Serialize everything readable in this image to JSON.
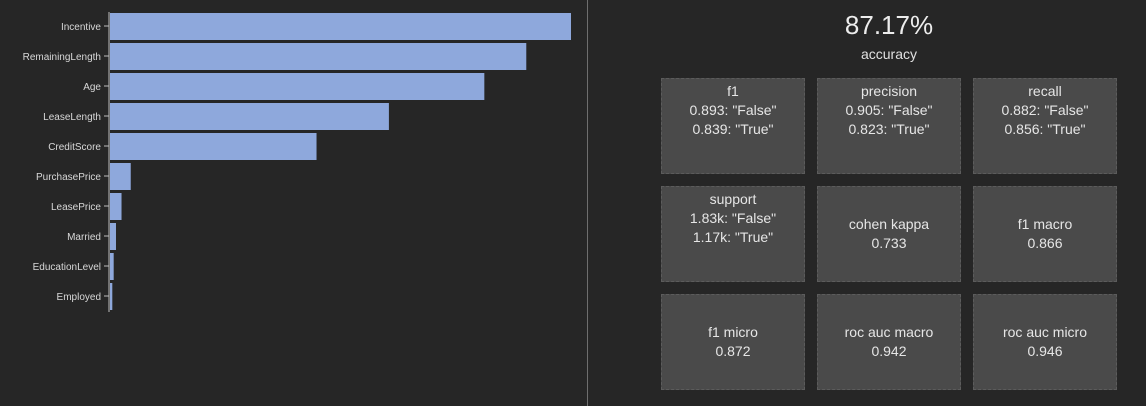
{
  "chart_data": {
    "type": "bar",
    "orientation": "horizontal",
    "categories": [
      "Incentive",
      "RemainingLength",
      "Age",
      "LeaseLength",
      "CreditScore",
      "PurchasePrice",
      "LeasePrice",
      "Married",
      "EducationLevel",
      "Employed"
    ],
    "values": [
      1.0,
      0.903,
      0.812,
      0.605,
      0.448,
      0.045,
      0.025,
      0.013,
      0.008,
      0.005
    ],
    "bar_color": "#8ea8dc",
    "grid": false
  },
  "metrics": {
    "accuracy_value": "87.17%",
    "accuracy_label": "accuracy",
    "tiles": [
      {
        "title": "f1",
        "lines": [
          "0.893: \"False\"",
          "0.839: \"True\""
        ]
      },
      {
        "title": "precision",
        "lines": [
          "0.905: \"False\"",
          "0.823: \"True\""
        ]
      },
      {
        "title": "recall",
        "lines": [
          "0.882: \"False\"",
          "0.856: \"True\""
        ]
      },
      {
        "title": "support",
        "lines": [
          "1.83k: \"False\"",
          "1.17k: \"True\""
        ]
      },
      {
        "title": "cohen kappa",
        "lines": [
          "0.733"
        ]
      },
      {
        "title": "f1 macro",
        "lines": [
          "0.866"
        ]
      },
      {
        "title": "f1 micro",
        "lines": [
          "0.872"
        ]
      },
      {
        "title": "roc auc macro",
        "lines": [
          "0.942"
        ]
      },
      {
        "title": "roc auc micro",
        "lines": [
          "0.946"
        ]
      }
    ]
  }
}
